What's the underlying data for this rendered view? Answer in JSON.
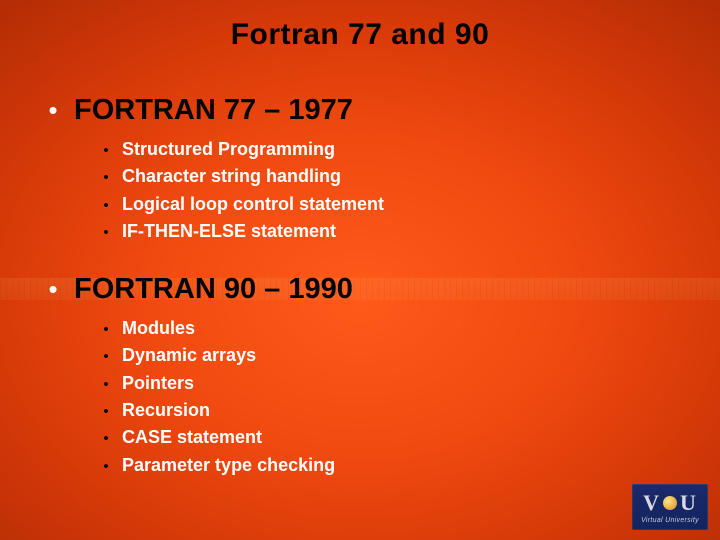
{
  "colors": {
    "background_center": "#ff5a1a",
    "background_edge": "#a02804",
    "title_color": "#000000",
    "section_title_color": "#000000",
    "body_text_color": "#ffffff",
    "top_bullet_color": "#ffffff",
    "sub_bullet_color": "#000000",
    "logo_bg": "#1a2a6b",
    "logo_text": "#d9d9e6"
  },
  "typography": {
    "title_fontsize": 30,
    "title_weight": 700,
    "section_title_fontsize": 29,
    "section_title_weight": 700,
    "item_fontsize": 18,
    "item_weight": 700
  },
  "title": "Fortran 77 and 90",
  "sections": [
    {
      "heading": "FORTRAN 77 – 1977",
      "items": [
        "Structured Programming",
        "Character string handling",
        "Logical loop control statement",
        "IF-THEN-ELSE statement"
      ]
    },
    {
      "heading": "FORTRAN 90 – 1990",
      "items": [
        "Modules",
        "Dynamic arrays",
        "Pointers",
        "Recursion",
        "CASE statement",
        "Parameter type checking"
      ]
    }
  ],
  "logo": {
    "letters": {
      "v": "V",
      "u": "U"
    },
    "subtext": "Virtual University"
  }
}
